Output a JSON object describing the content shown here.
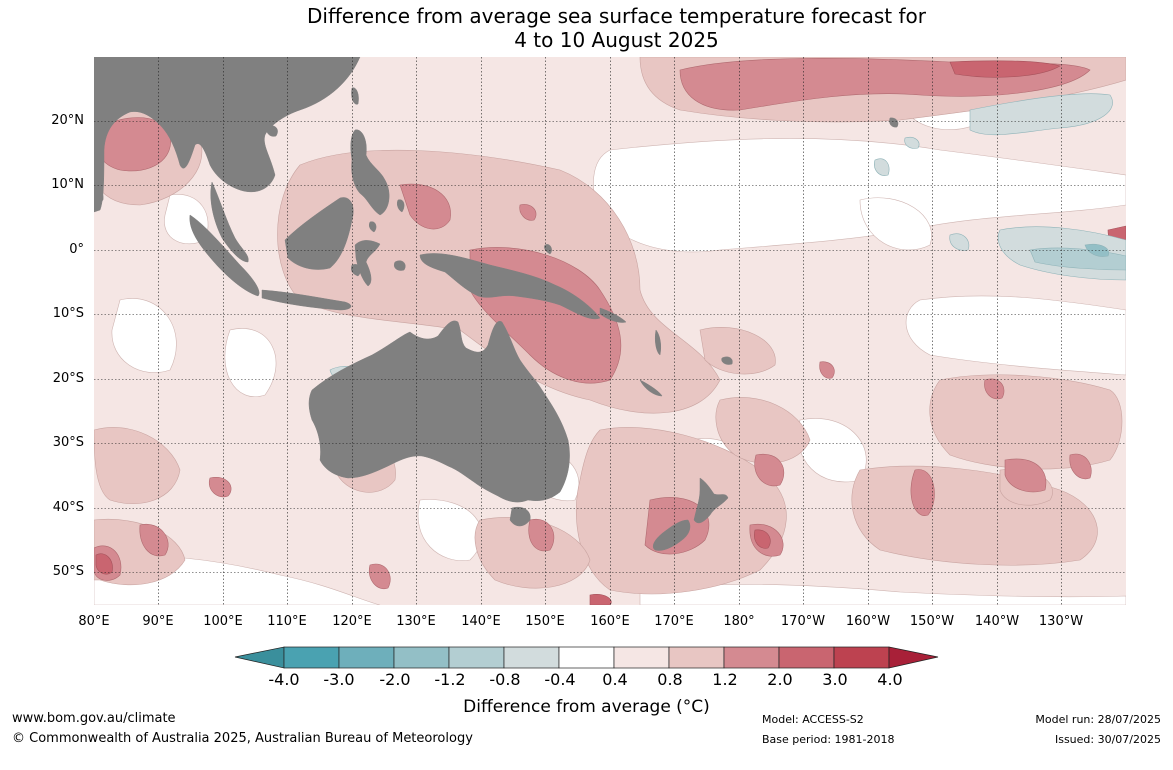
{
  "title": {
    "line1": "Difference from average sea surface temperature forecast for",
    "line2": "4 to 10 August 2025"
  },
  "lat_labels": [
    "20°N",
    "10°N",
    "0°",
    "10°S",
    "20°S",
    "30°S",
    "40°S",
    "50°S"
  ],
  "lon_labels": [
    "80°E",
    "90°E",
    "100°E",
    "110°E",
    "120°E",
    "130°E",
    "140°E",
    "150°E",
    "160°E",
    "170°E",
    "180°",
    "170°W",
    "160°W",
    "150°W",
    "140°W",
    "130°W"
  ],
  "colorbar": {
    "tick_labels": [
      "-4.0",
      "-3.0",
      "-2.0",
      "-1.2",
      "-0.8",
      "-0.4",
      "0.4",
      "0.8",
      "1.2",
      "2.0",
      "3.0",
      "4.0"
    ],
    "colors": [
      "#4aa2b1",
      "#6eafbb",
      "#93bfc6",
      "#b3ced2",
      "#d2dcdd",
      "#ffffff",
      "#f5e6e4",
      "#e8c6c3",
      "#d48a91",
      "#c96570",
      "#bd4250"
    ],
    "under_color": "#3a8f9c",
    "over_color": "#a82038",
    "label": "Difference from average (°C)"
  },
  "land_color": "#808080",
  "footer": {
    "website": "www.bom.gov.au/climate",
    "copyright": "© Commonwealth of Australia 2025, Australian Bureau of Meteorology",
    "model": "Model: ACCESS-S2",
    "base_period": "Base period: 1981-2018",
    "model_run": "Model run: 28/07/2025",
    "issued": "Issued: 30/07/2025"
  }
}
